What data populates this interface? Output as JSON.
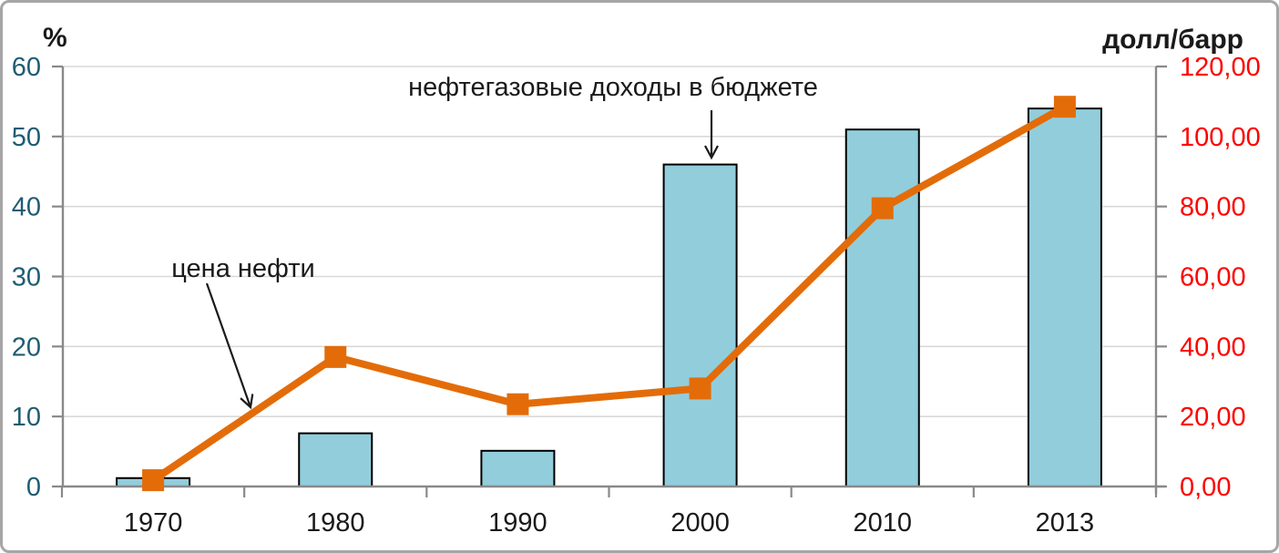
{
  "figure": {
    "left_axis_unit": "%",
    "right_axis_unit": "долл/барр"
  },
  "annotations": {
    "budget": "нефтегазовые доходы в бюджете",
    "oil_price": "цена нефти"
  },
  "chart_data": {
    "type": "bar+line",
    "categories": [
      "1970",
      "1980",
      "1990",
      "2000",
      "2010",
      "2013"
    ],
    "series": [
      {
        "name": "нефтегазовые доходы в бюджете",
        "type": "bar",
        "axis": "left",
        "unit": "%",
        "values": [
          1.2,
          7.6,
          5.1,
          46,
          51,
          54
        ],
        "fill": "#92CDDC",
        "stroke": "#000000"
      },
      {
        "name": "цена нефти",
        "type": "line",
        "axis": "right",
        "unit": "долл/барр",
        "values": [
          1.8,
          37,
          23.5,
          28,
          79.5,
          108.5
        ],
        "color": "#E36C09",
        "marker": "square"
      }
    ],
    "left_axis": {
      "label": "%",
      "min": 0,
      "max": 60,
      "step": 10,
      "tick_labels": [
        "0",
        "10",
        "20",
        "30",
        "40",
        "50",
        "60"
      ],
      "tick_color": "#1F5C73"
    },
    "right_axis": {
      "label": "долл/барр",
      "min": 0,
      "max": 120,
      "step": 20,
      "tick_labels": [
        "0,00",
        "20,00",
        "40,00",
        "60,00",
        "80,00",
        "100,00",
        "120,00"
      ],
      "tick_color": "#FF0000"
    },
    "grid": true,
    "legend_position": "none",
    "colors": {
      "gridline": "#D9D9D9",
      "axis_line": "#898989",
      "category_label": "#1a1a1a",
      "annotation_text": "#1a1a1a"
    }
  }
}
